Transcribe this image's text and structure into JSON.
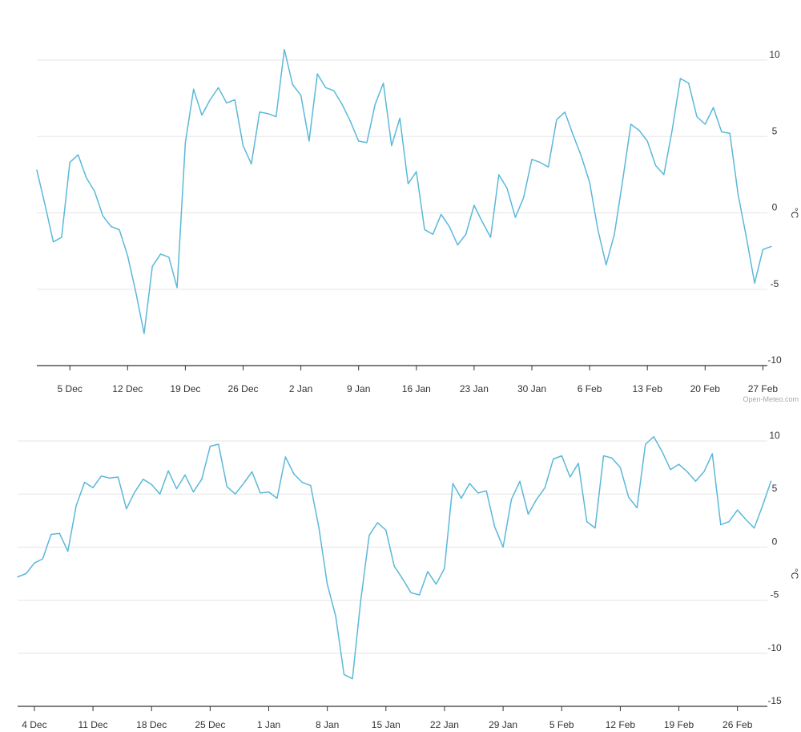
{
  "credit": "Open-Meteo.com",
  "chart_data": [
    {
      "type": "line",
      "unit": "°C",
      "ylim": [
        -10,
        10
      ],
      "yticks": [
        -10,
        -5,
        0,
        5,
        10
      ],
      "grid": true,
      "color": "#5bb8d9",
      "x_start_date": "1 Dec",
      "xticks": [
        {
          "day": 4,
          "label": "5 Dec"
        },
        {
          "day": 11,
          "label": "12 Dec"
        },
        {
          "day": 18,
          "label": "19 Dec"
        },
        {
          "day": 25,
          "label": "26 Dec"
        },
        {
          "day": 32,
          "label": "2 Jan"
        },
        {
          "day": 39,
          "label": "9 Jan"
        },
        {
          "day": 46,
          "label": "16 Jan"
        },
        {
          "day": 53,
          "label": "23 Jan"
        },
        {
          "day": 60,
          "label": "30 Jan"
        },
        {
          "day": 67,
          "label": "6 Feb"
        },
        {
          "day": 74,
          "label": "13 Feb"
        },
        {
          "day": 81,
          "label": "20 Feb"
        },
        {
          "day": 88,
          "label": "27 Feb"
        }
      ],
      "series": [
        {
          "name": "Temperature",
          "values": [
            2.8,
            0.5,
            -1.9,
            -1.6,
            3.3,
            3.8,
            2.3,
            1.4,
            -0.2,
            -0.9,
            -1.1,
            -2.8,
            -5.2,
            -7.9,
            -3.5,
            -2.7,
            -2.9,
            -4.9,
            4.6,
            8.1,
            6.4,
            7.4,
            8.2,
            7.2,
            7.4,
            4.4,
            3.2,
            6.6,
            6.5,
            6.3,
            10.7,
            8.4,
            7.7,
            4.7,
            9.1,
            8.2,
            8.0,
            7.1,
            6.0,
            4.7,
            4.6,
            7.1,
            8.5,
            4.4,
            6.2,
            1.9,
            2.7,
            -1.1,
            -1.4,
            -0.1,
            -0.9,
            -2.1,
            -1.4,
            0.5,
            -0.6,
            -1.6,
            2.5,
            1.6,
            -0.3,
            1.0,
            3.5,
            3.3,
            3.0,
            6.1,
            6.6,
            5.1,
            3.7,
            2.0,
            -1.1,
            -3.4,
            -1.4,
            2.1,
            5.8,
            5.4,
            4.7,
            3.1,
            2.5,
            5.4,
            8.8,
            8.5,
            6.3,
            5.8,
            6.9,
            5.3,
            5.2,
            1.2,
            -1.6,
            -4.6,
            -2.4,
            -2.2
          ]
        }
      ]
    },
    {
      "type": "line",
      "unit": "°C",
      "ylim": [
        -15,
        10
      ],
      "yticks": [
        -15,
        -10,
        -5,
        0,
        5,
        10
      ],
      "grid": true,
      "color": "#5bb8d9",
      "x_start_date": "2 Dec",
      "xticks": [
        {
          "day": 2,
          "label": "4 Dec"
        },
        {
          "day": 9,
          "label": "11 Dec"
        },
        {
          "day": 16,
          "label": "18 Dec"
        },
        {
          "day": 23,
          "label": "25 Dec"
        },
        {
          "day": 30,
          "label": "1 Jan"
        },
        {
          "day": 37,
          "label": "8 Jan"
        },
        {
          "day": 44,
          "label": "15 Jan"
        },
        {
          "day": 51,
          "label": "22 Jan"
        },
        {
          "day": 58,
          "label": "29 Jan"
        },
        {
          "day": 65,
          "label": "5 Feb"
        },
        {
          "day": 72,
          "label": "12 Feb"
        },
        {
          "day": 79,
          "label": "19 Feb"
        },
        {
          "day": 86,
          "label": "26 Feb"
        }
      ],
      "series": [
        {
          "name": "Temperature",
          "values": [
            -2.8,
            -2.5,
            -1.5,
            -1.1,
            1.2,
            1.3,
            -0.4,
            3.9,
            6.1,
            5.6,
            6.7,
            6.5,
            6.6,
            3.6,
            5.2,
            6.4,
            5.9,
            5.0,
            7.2,
            5.5,
            6.8,
            5.2,
            6.4,
            9.5,
            9.7,
            5.7,
            5.0,
            6.0,
            7.1,
            5.1,
            5.2,
            4.6,
            8.5,
            6.9,
            6.1,
            5.8,
            1.8,
            -3.5,
            -6.5,
            -12.0,
            -12.4,
            -5.0,
            1.1,
            2.3,
            1.6,
            -1.8,
            -3.0,
            -4.3,
            -4.5,
            -2.3,
            -3.5,
            -2.0,
            6.0,
            4.6,
            6.0,
            5.1,
            5.3,
            1.9,
            0.0,
            4.5,
            6.2,
            3.1,
            4.5,
            5.6,
            8.3,
            8.6,
            6.6,
            7.9,
            2.4,
            1.8,
            8.6,
            8.4,
            7.5,
            4.7,
            3.7,
            9.7,
            10.4,
            9.0,
            7.3,
            7.8,
            7.1,
            6.2,
            7.1,
            8.8,
            2.1,
            2.4,
            3.5,
            2.6,
            1.8,
            3.9,
            6.2
          ]
        }
      ]
    }
  ]
}
